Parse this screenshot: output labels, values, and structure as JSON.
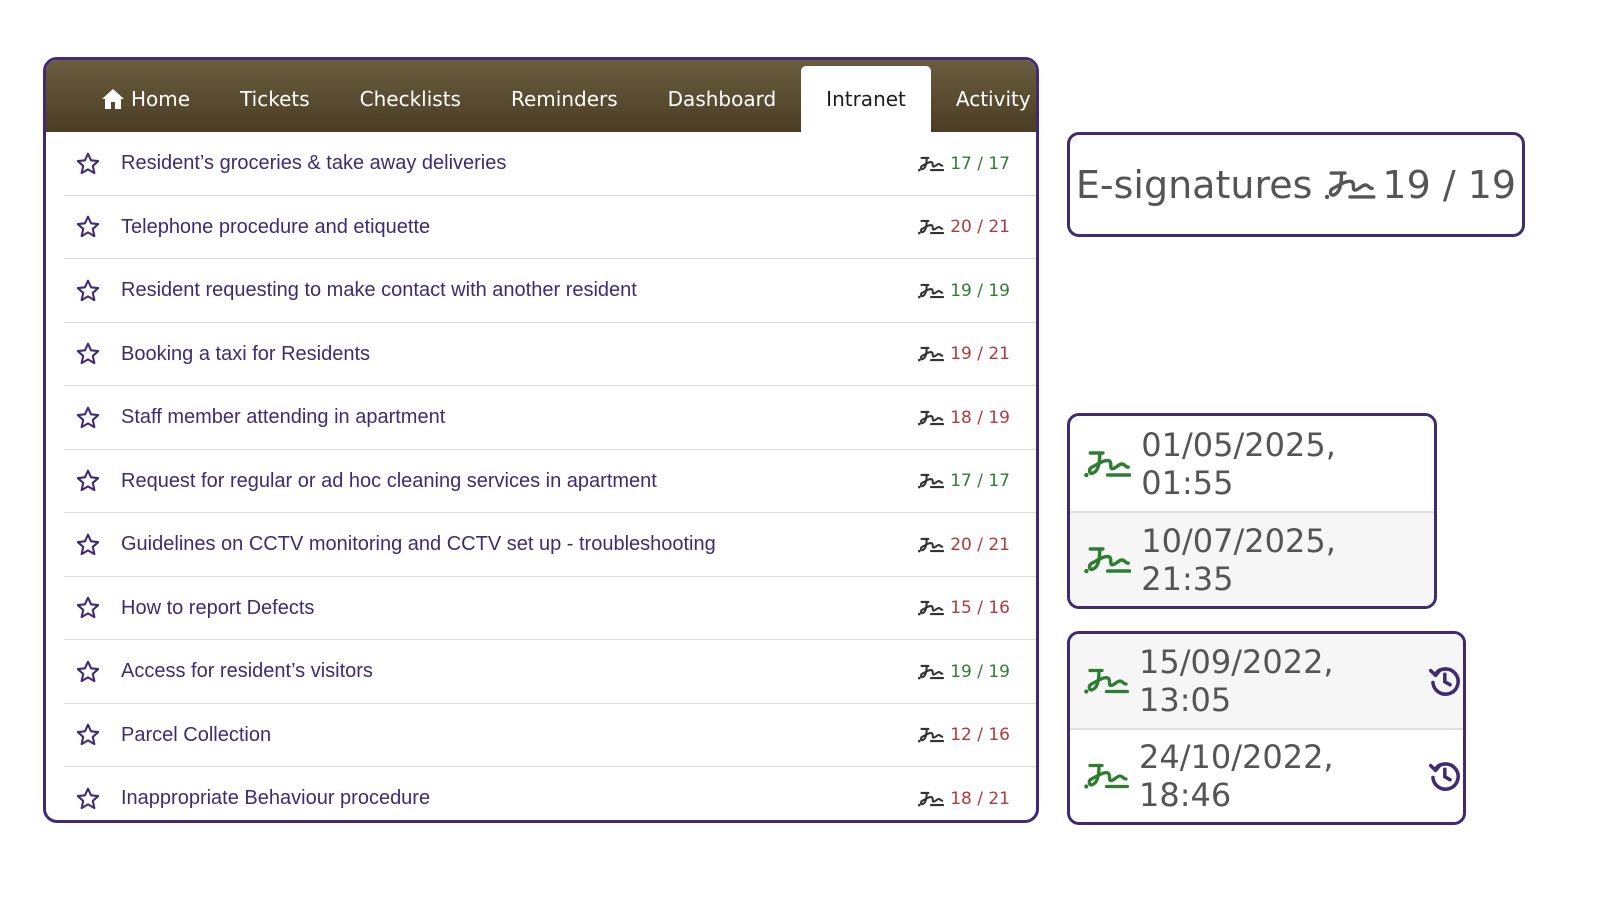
{
  "nav": {
    "tabs": [
      {
        "label": "Home",
        "icon": "home-icon",
        "active": false
      },
      {
        "label": "Tickets",
        "active": false
      },
      {
        "label": "Checklists",
        "active": false
      },
      {
        "label": "Reminders",
        "active": false
      },
      {
        "label": "Dashboard",
        "active": false
      },
      {
        "label": "Intranet",
        "active": true
      },
      {
        "label": "Activity",
        "active": false
      }
    ]
  },
  "documents": [
    {
      "title": "Resident’s groceries & take away deliveries",
      "count": "17 / 17",
      "complete": true
    },
    {
      "title": "Telephone procedure and etiquette",
      "count": "20 / 21",
      "complete": false
    },
    {
      "title": "Resident requesting to make contact with another resident",
      "count": "19 / 19",
      "complete": true
    },
    {
      "title": "Booking a taxi for Residents",
      "count": "19 / 21",
      "complete": false
    },
    {
      "title": "Staff member attending in apartment",
      "count": "18 / 19",
      "complete": false
    },
    {
      "title": "Request for regular or ad hoc cleaning services in apartment",
      "count": "17 / 17",
      "complete": true
    },
    {
      "title": "Guidelines on CCTV monitoring and CCTV set up - troubleshooting",
      "count": "20 / 21",
      "complete": false
    },
    {
      "title": "How to report Defects",
      "count": "15 / 16",
      "complete": false
    },
    {
      "title": "Access for resident’s visitors",
      "count": "19 / 19",
      "complete": true
    },
    {
      "title": "Parcel Collection",
      "count": "12 / 16",
      "complete": false
    },
    {
      "title": "Inappropriate Behaviour procedure",
      "count": "18 / 21",
      "complete": false
    }
  ],
  "esignatures": {
    "label": "E-signatures",
    "count": "19 / 19"
  },
  "signed_dates": [
    "01/05/2025, 01:55",
    "10/07/2025, 21:35"
  ],
  "history_dates": [
    "15/09/2022, 13:05",
    "24/10/2022, 18:46"
  ],
  "colors": {
    "accent": "#3f2a73",
    "nav_bg": "#5a4c30",
    "complete": "#2e7d32",
    "incomplete": "#b23a3a",
    "signature_green": "#2e7d32"
  }
}
